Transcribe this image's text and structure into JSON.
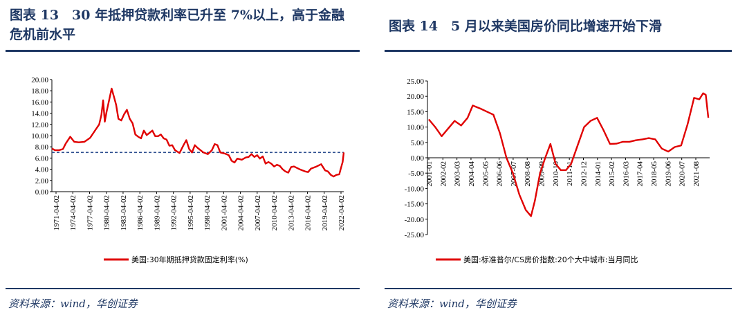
{
  "left": {
    "title": "图表 13　30 年抵押贷款利率已升至 7%以上，高于金融危机前水平",
    "source": "资料来源：wind，华创证券",
    "legend": "美国:30年期抵押贷款固定利率(%)"
  },
  "right": {
    "title": "图表 14　5 月以来美国房价同比增速开始下滑",
    "source": "资料来源：wind，华创证券",
    "legend": "美国:标准普尔/CS房价指数:20个大中城市:当月同比"
  },
  "colors": {
    "series": "#e00000",
    "reference": "#2e4f8f",
    "title": "#1f3864"
  },
  "chart_data": [
    {
      "type": "line",
      "title": "",
      "ylim": [
        0,
        20
      ],
      "y_ticks": [
        "0.00",
        "2.00",
        "4.00",
        "6.00",
        "8.00",
        "10.00",
        "12.00",
        "14.00",
        "16.00",
        "18.00",
        "20.00"
      ],
      "x_ticks": [
        "1971-04-02",
        "1974-04-02",
        "1977-04-02",
        "1980-04-02",
        "1983-04-02",
        "1986-04-02",
        "1989-04-02",
        "1992-04-02",
        "1995-04-02",
        "1998-04-02",
        "2001-04-02",
        "2004-04-02",
        "2007-04-02",
        "2010-04-02",
        "2013-04-02",
        "2016-04-02",
        "2019-04-02",
        "2022-04-02"
      ],
      "reference_line": {
        "y": 7.0,
        "style": "dashed"
      },
      "series": [
        {
          "name": "美国:30年期抵押贷款固定利率(%)",
          "x": [
            1971.25,
            1971.8,
            1972.5,
            1973.2,
            1973.7,
            1974.5,
            1975.2,
            1976.0,
            1977.0,
            1978.0,
            1978.8,
            1979.6,
            1980.0,
            1980.3,
            1980.6,
            1980.9,
            1981.4,
            1981.8,
            1982.2,
            1982.6,
            1983.0,
            1983.5,
            1984.0,
            1984.5,
            1985.0,
            1985.5,
            1986.0,
            1986.5,
            1987.0,
            1987.5,
            1988.0,
            1988.5,
            1989.0,
            1989.5,
            1990.0,
            1990.5,
            1991.0,
            1991.5,
            1992.0,
            1992.5,
            1993.0,
            1993.8,
            1994.5,
            1995.0,
            1995.5,
            1996.0,
            1996.5,
            1997.0,
            1997.5,
            1998.0,
            1998.8,
            1999.5,
            2000.0,
            2000.5,
            2001.0,
            2001.8,
            2002.5,
            2003.0,
            2003.5,
            2004.0,
            2004.8,
            2005.5,
            2006.0,
            2006.5,
            2007.0,
            2007.5,
            2008.0,
            2008.5,
            2009.0,
            2009.5,
            2010.0,
            2010.5,
            2011.0,
            2011.5,
            2012.0,
            2012.5,
            2013.0,
            2013.5,
            2014.0,
            2015.0,
            2016.0,
            2016.5,
            2017.0,
            2018.0,
            2018.8,
            2019.5,
            2020.0,
            2020.5,
            2021.0,
            2021.5,
            2022.0,
            2022.3,
            2022.6,
            2022.8
          ],
          "values": [
            7.7,
            7.4,
            7.4,
            7.6,
            8.6,
            9.8,
            8.9,
            8.8,
            8.9,
            9.6,
            10.8,
            12.0,
            13.7,
            16.3,
            12.5,
            14.2,
            16.5,
            18.4,
            17.0,
            15.5,
            13.0,
            12.7,
            13.8,
            14.6,
            13.0,
            12.2,
            10.2,
            9.8,
            9.5,
            10.9,
            10.1,
            10.5,
            10.9,
            9.9,
            9.9,
            10.2,
            9.5,
            9.3,
            8.2,
            8.3,
            7.4,
            6.9,
            8.3,
            9.2,
            7.6,
            7.0,
            8.3,
            7.8,
            7.4,
            7.0,
            6.7,
            7.4,
            8.5,
            8.3,
            7.0,
            6.8,
            6.5,
            5.5,
            5.2,
            5.9,
            5.7,
            6.1,
            6.2,
            6.7,
            6.2,
            6.5,
            5.9,
            6.3,
            5.0,
            5.3,
            5.0,
            4.5,
            4.8,
            4.6,
            4.0,
            3.6,
            3.4,
            4.4,
            4.5,
            4.0,
            3.6,
            3.5,
            4.1,
            4.5,
            4.9,
            3.8,
            3.6,
            3.0,
            2.7,
            3.0,
            3.1,
            4.2,
            5.3,
            7.0
          ]
        }
      ]
    },
    {
      "type": "line",
      "title": "",
      "ylim": [
        -25,
        25
      ],
      "y_ticks": [
        "-25.00",
        "-20.00",
        "-15.00",
        "-10.00",
        "-5.00",
        "0.00",
        "5.00",
        "10.00",
        "15.00",
        "20.00",
        "25.00"
      ],
      "x_ticks": [
        "2001-01",
        "2002-02",
        "2003-03",
        "2004-04",
        "2005-05",
        "2006-06",
        "2007-07",
        "2008-08",
        "2009-09",
        "2010-10",
        "2011-11",
        "2012-12",
        "2014-01",
        "2015-02",
        "2016-03",
        "2017-04",
        "2018-05",
        "2019-06",
        "2020-07",
        "2021-08"
      ],
      "series": [
        {
          "name": "美国:标准普尔/CS房价指数:20个大中城市:当月同比",
          "x": [
            2001.0,
            2001.5,
            2002.0,
            2002.5,
            2003.0,
            2003.5,
            2004.0,
            2004.4,
            2005.0,
            2005.5,
            2006.0,
            2006.5,
            2007.0,
            2007.5,
            2008.0,
            2008.5,
            2008.9,
            2009.2,
            2009.6,
            2010.0,
            2010.4,
            2010.8,
            2011.2,
            2011.6,
            2012.0,
            2012.5,
            2013.0,
            2013.5,
            2014.0,
            2014.5,
            2015.0,
            2015.5,
            2016.0,
            2016.5,
            2017.0,
            2017.5,
            2018.0,
            2018.5,
            2019.0,
            2019.5,
            2020.0,
            2020.5,
            2021.0,
            2021.5,
            2021.9,
            2022.2,
            2022.4,
            2022.6
          ],
          "values": [
            12.5,
            10.0,
            7.0,
            9.5,
            12.0,
            10.5,
            13.0,
            17.0,
            16.0,
            15.0,
            14.0,
            8.0,
            0.0,
            -5.0,
            -12.0,
            -17.0,
            -19.0,
            -14.0,
            -5.0,
            0.0,
            4.5,
            -2.0,
            -4.0,
            -4.0,
            -2.0,
            4.0,
            10.0,
            12.0,
            13.0,
            9.0,
            4.5,
            4.6,
            5.2,
            5.2,
            5.7,
            6.0,
            6.4,
            6.0,
            3.0,
            2.0,
            3.5,
            4.0,
            11.0,
            19.5,
            19.0,
            21.0,
            20.5,
            13.0
          ]
        }
      ]
    }
  ]
}
